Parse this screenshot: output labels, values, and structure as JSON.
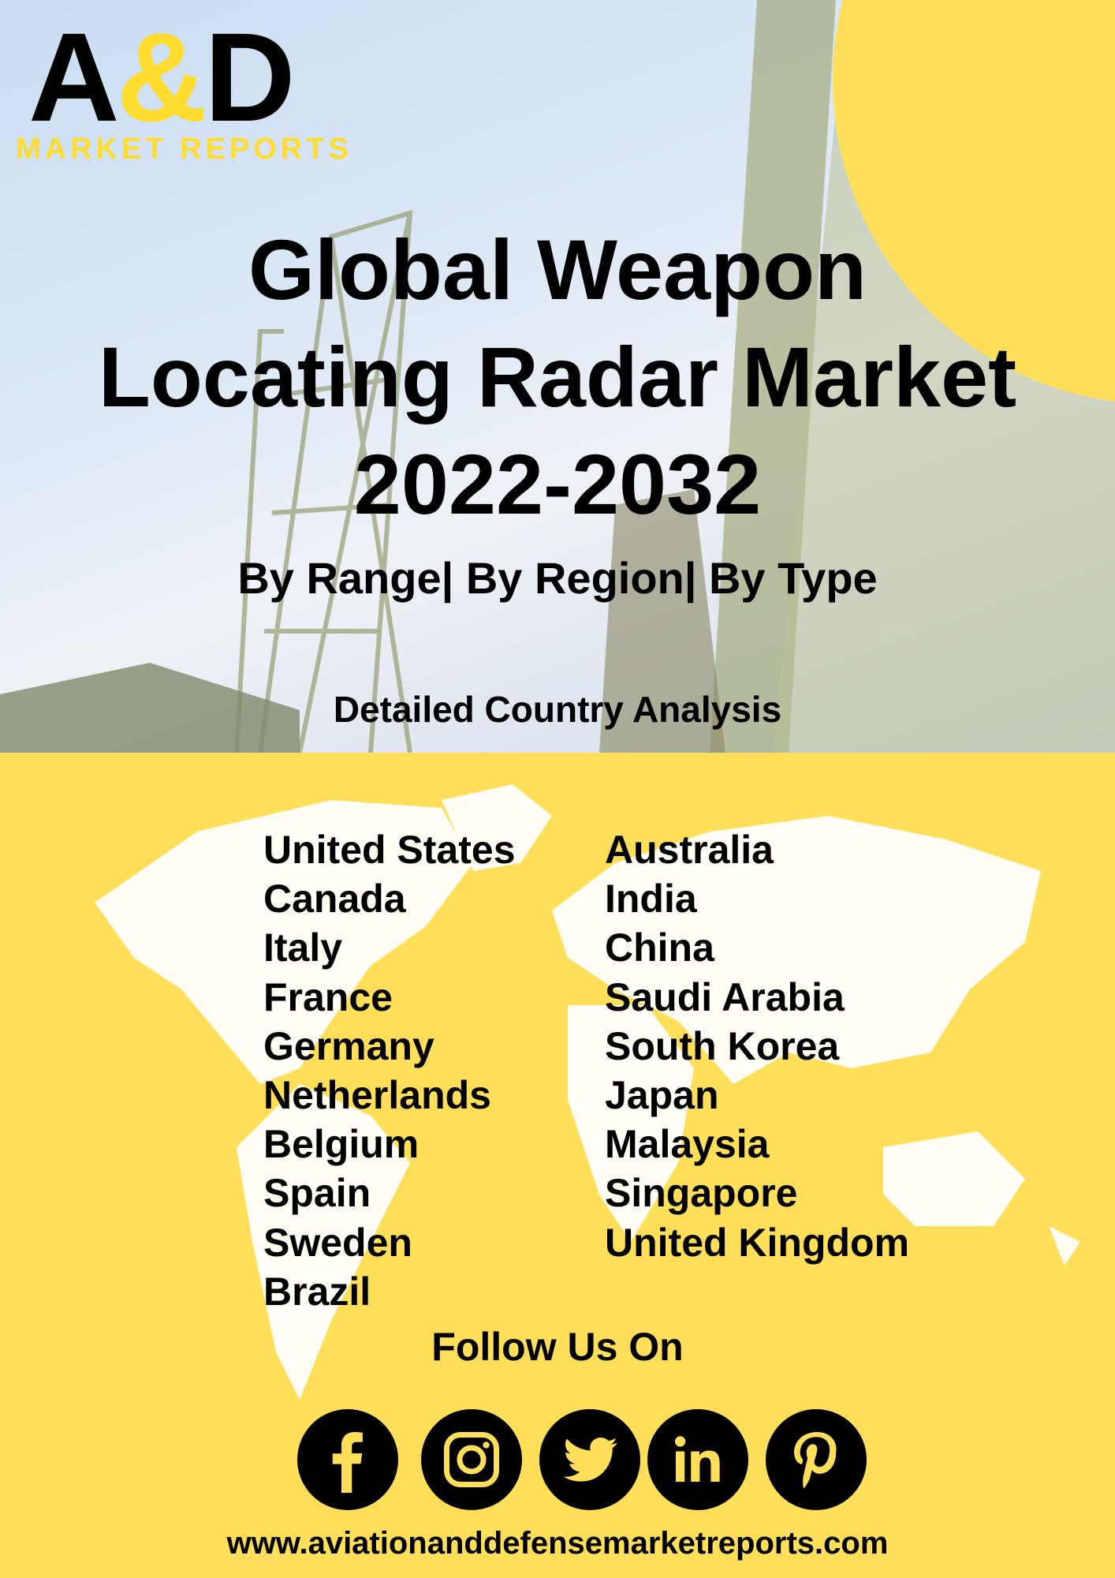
{
  "logo": {
    "main_left": "A",
    "main_amp": "&",
    "main_right": "D",
    "sub": "MARKET REPORTS"
  },
  "title": {
    "line1": "Global Weapon",
    "line2": "Locating Radar Market",
    "line3": "2022-2032"
  },
  "subtitle": "By Range| By Region| By Type",
  "detail_heading": "Detailed Country Analysis",
  "countries_left": [
    "United States",
    "Canada",
    "Italy",
    "France",
    "Germany",
    "Netherlands",
    "Belgium",
    "Spain",
    "Sweden",
    "Brazil"
  ],
  "countries_right": [
    "Australia",
    "India",
    "China",
    "Saudi Arabia",
    "South Korea",
    "Japan",
    "Malaysia",
    "Singapore",
    "United Kingdom"
  ],
  "follow": "Follow Us On",
  "social": [
    "facebook-icon",
    "instagram-icon",
    "twitter-icon",
    "linkedin-icon",
    "pinterest-icon"
  ],
  "url": "www.aviationanddefensemarketreports.com",
  "colors": {
    "brand_yellow": "#FFDE59",
    "logo_yellow": "#FFDC2E",
    "text": "#000000"
  }
}
